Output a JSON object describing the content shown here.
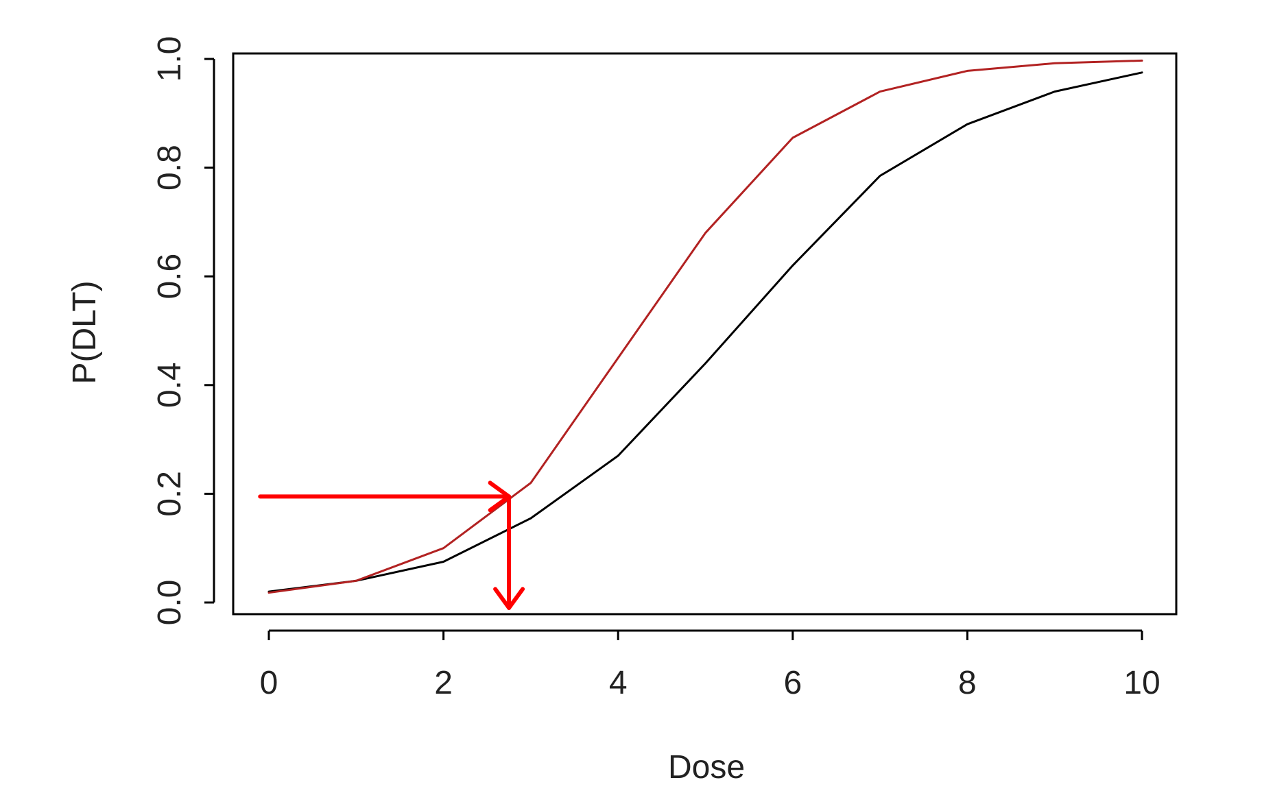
{
  "chart_data": {
    "type": "line",
    "title": "",
    "xlabel": "Dose",
    "ylabel": "P(DLT)",
    "xlim": [
      0,
      10
    ],
    "ylim": [
      0,
      1
    ],
    "xticks": [
      0,
      2,
      4,
      6,
      8,
      10
    ],
    "yticks": [
      0.0,
      0.2,
      0.4,
      0.6,
      0.8,
      1.0
    ],
    "xtick_labels": [
      "0",
      "2",
      "4",
      "6",
      "8",
      "10"
    ],
    "ytick_labels": [
      "0.0",
      "0.2",
      "0.4",
      "0.6",
      "0.8",
      "1.0"
    ],
    "grid": false,
    "x": [
      0,
      1,
      2,
      3,
      4,
      5,
      6,
      7,
      8,
      9,
      10
    ],
    "series": [
      {
        "color": "#000000",
        "values": [
          0.02,
          0.04,
          0.075,
          0.155,
          0.27,
          0.44,
          0.62,
          0.785,
          0.88,
          0.94,
          0.975
        ]
      },
      {
        "color": "#b22222",
        "values": [
          0.018,
          0.04,
          0.1,
          0.22,
          0.45,
          0.68,
          0.855,
          0.94,
          0.978,
          0.992,
          0.997
        ]
      }
    ],
    "annotations": [
      {
        "type": "arrow",
        "color": "#ff0000",
        "from": {
          "x": -0.1,
          "y": 0.195
        },
        "to": {
          "x": 2.75,
          "y": 0.195
        }
      },
      {
        "type": "arrow",
        "color": "#ff0000",
        "from": {
          "x": 2.75,
          "y": 0.195
        },
        "to": {
          "x": 2.75,
          "y": -0.01
        }
      }
    ]
  }
}
